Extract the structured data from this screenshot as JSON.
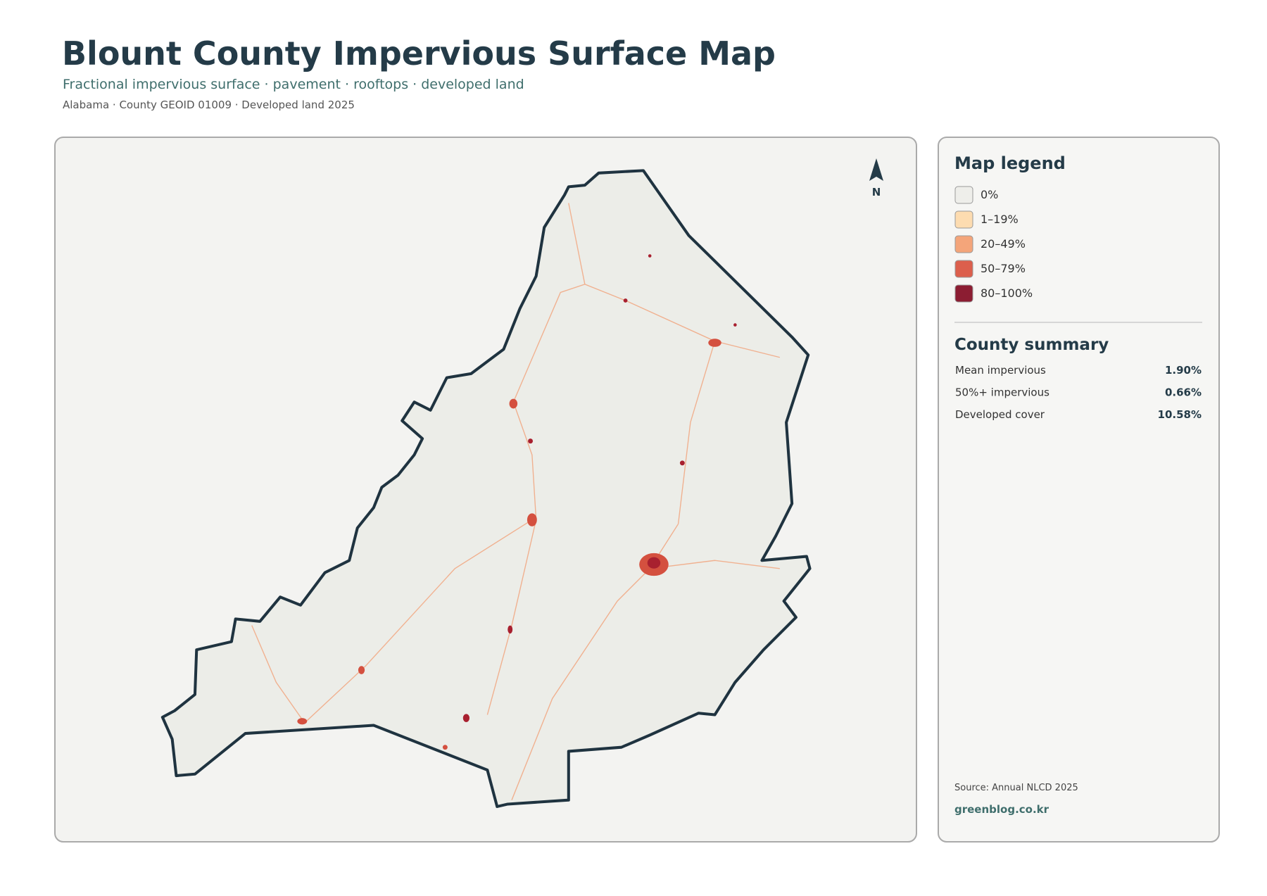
{
  "header": {
    "title": "Blount County Impervious Surface Map",
    "subtitle": "Fractional impervious surface · pavement · rooftops · developed land",
    "meta": "Alabama · County GEOID 01009 · Developed land 2025"
  },
  "map": {
    "north_label": "N"
  },
  "legend": {
    "title": "Map legend",
    "items": [
      {
        "label": "0%",
        "color": "#eeeeea"
      },
      {
        "label": "1–19%",
        "color": "#fddcb0"
      },
      {
        "label": "20–49%",
        "color": "#f4a57a"
      },
      {
        "label": "50–79%",
        "color": "#dc5f4c"
      },
      {
        "label": "80–100%",
        "color": "#8c1d32"
      }
    ]
  },
  "summary": {
    "title": "County summary",
    "rows": [
      {
        "label": "Mean impervious",
        "value": "1.90%"
      },
      {
        "label": "50%+ impervious",
        "value": "0.66%"
      },
      {
        "label": "Developed cover",
        "value": "10.58%"
      }
    ]
  },
  "footer": {
    "source": "Source: Annual NLCD 2025",
    "credit": "greenblog.co.kr"
  }
}
